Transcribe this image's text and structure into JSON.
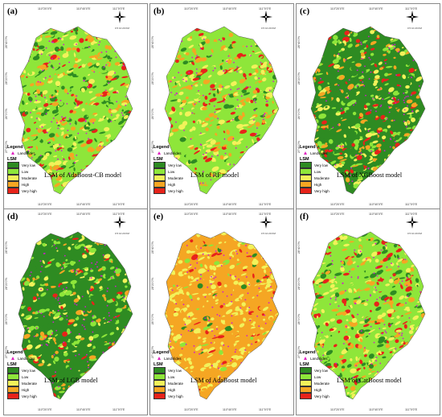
{
  "legend": {
    "title": "Legend",
    "landslides": "Landslides",
    "lsm_title": "LSM",
    "classes": [
      {
        "label": "Very low",
        "color": "#2e8b22"
      },
      {
        "label": "Low",
        "color": "#8ee63a"
      },
      {
        "label": "Moderate",
        "color": "#f2f25a"
      },
      {
        "label": "High",
        "color": "#f5a623"
      },
      {
        "label": "Very high",
        "color": "#e8231a"
      }
    ]
  },
  "coords": {
    "lon_top": [
      "110°20'0\"E",
      "110°40'0\"E",
      "111°0'0\"E"
    ],
    "lon_bottom": [
      "110°20'0\"E",
      "110°40'0\"E",
      "111°0'0\"E"
    ],
    "lat": [
      "28°40'0\"N",
      "28°20'0\"N",
      "28°0'0\"N",
      "27°40'0\"N"
    ],
    "scale": "0  5  10      20 KM"
  },
  "panels": [
    {
      "label": "(a)",
      "caption": "LSM  of AdaBoost-CB model",
      "mix": [
        0.15,
        0.35,
        0.2,
        0.18,
        0.12
      ]
    },
    {
      "label": "(b)",
      "caption": "LSM of RF model",
      "mix": [
        0.08,
        0.42,
        0.2,
        0.18,
        0.12
      ]
    },
    {
      "label": "(c)",
      "caption": "LSM of XGBoost model",
      "mix": [
        0.4,
        0.2,
        0.15,
        0.15,
        0.1
      ]
    },
    {
      "label": "(d)",
      "caption": "LSM of LGB model",
      "mix": [
        0.5,
        0.2,
        0.12,
        0.1,
        0.08
      ]
    },
    {
      "label": "(e)",
      "caption": "LSM of AdaBoost model",
      "mix": [
        0.03,
        0.05,
        0.35,
        0.52,
        0.05
      ]
    },
    {
      "label": "(f)",
      "caption": "LSM of CatBoost model",
      "mix": [
        0.15,
        0.38,
        0.2,
        0.15,
        0.12
      ]
    }
  ]
}
